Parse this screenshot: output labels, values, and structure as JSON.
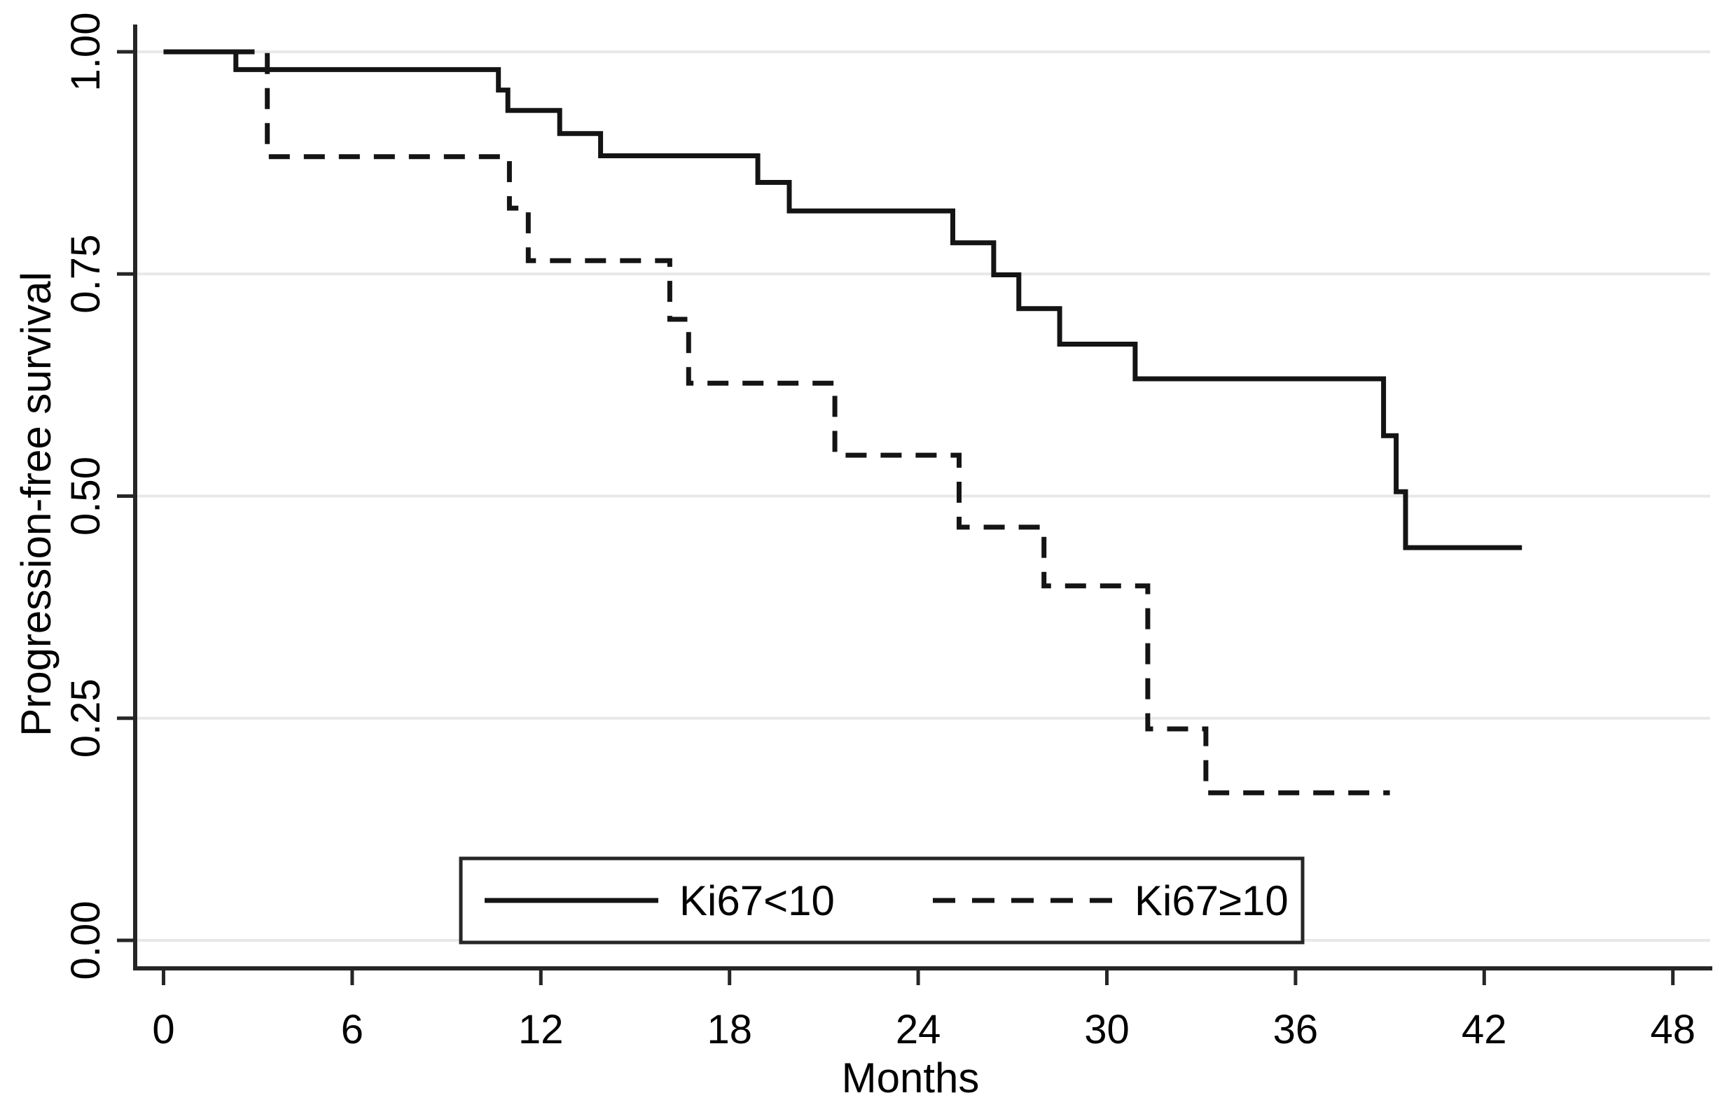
{
  "chart_data": {
    "type": "line",
    "subtype": "kaplan-meier-step",
    "title": "",
    "xlabel": "Months",
    "ylabel": "Progression-free survival",
    "xlim": [
      0,
      48
    ],
    "ylim": [
      0.0,
      1.0
    ],
    "x_ticks": [
      0,
      6,
      12,
      18,
      24,
      30,
      36,
      42,
      48
    ],
    "y_ticks": [
      {
        "value": 0.0,
        "label": "0.00"
      },
      {
        "value": 0.25,
        "label": "0.25"
      },
      {
        "value": 0.5,
        "label": "0.50"
      },
      {
        "value": 0.75,
        "label": "0.75"
      },
      {
        "value": 1.0,
        "label": "1.00"
      }
    ],
    "grid": "horizontal-only",
    "legend_position": "bottom-center-box",
    "colors": {
      "curve": "#141414",
      "axis": "#262626",
      "grid": "#e8e8e8",
      "text": "#000000",
      "background": "#ffffff",
      "legend_border": "#262626"
    },
    "series": [
      {
        "name": "Ki67<10",
        "style": "solid",
        "points": [
          [
            0,
            1.0
          ],
          [
            2.3,
            0.98
          ],
          [
            10.65,
            0.957
          ],
          [
            10.95,
            0.934
          ],
          [
            12.6,
            0.908
          ],
          [
            13.9,
            0.883
          ],
          [
            18.9,
            0.853
          ],
          [
            19.9,
            0.821
          ],
          [
            25.1,
            0.785
          ],
          [
            26.4,
            0.749
          ],
          [
            27.2,
            0.711
          ],
          [
            28.5,
            0.671
          ],
          [
            30.9,
            0.632
          ],
          [
            38.8,
            0.568
          ],
          [
            39.2,
            0.505
          ],
          [
            39.5,
            0.442
          ]
        ],
        "end_time": 43.2
      },
      {
        "name": "Ki67≥10",
        "style": "dashed",
        "points": [
          [
            0,
            1.0
          ],
          [
            3.3,
            0.882
          ],
          [
            11.0,
            0.824
          ],
          [
            11.6,
            0.765
          ],
          [
            16.1,
            0.699
          ],
          [
            16.7,
            0.627
          ],
          [
            21.35,
            0.546
          ],
          [
            25.3,
            0.465
          ],
          [
            28.0,
            0.399
          ],
          [
            31.3,
            0.238
          ],
          [
            33.15,
            0.166
          ]
        ],
        "end_time": 39.0
      }
    ]
  }
}
